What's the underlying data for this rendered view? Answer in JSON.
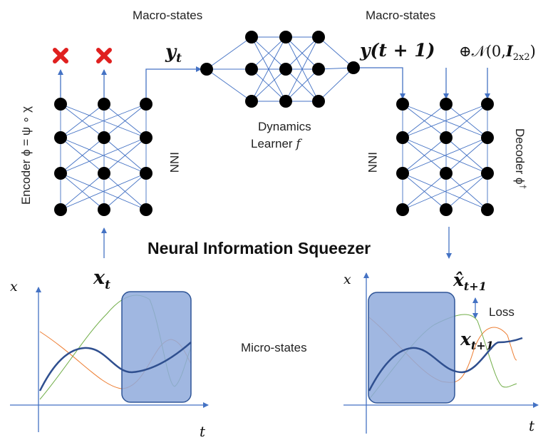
{
  "title": "Neural Information Squeezer",
  "labels": {
    "macro_left": "Macro-states",
    "macro_right": "Macro-states",
    "micro": "Micro-states",
    "dynamics_line1": "Dynamics",
    "dynamics_line2": "Learner",
    "dynamics_f": "f",
    "encoder": "Encoder ϕ = ψ ∘ χ",
    "decoder": "Decoder ϕ",
    "decoder_sup": "†",
    "inn_left": "INN",
    "inn_right": "INN",
    "loss": "Loss"
  },
  "math": {
    "y_t": "y",
    "y_t_sub": "t",
    "y_t1": "y(t + 1)",
    "noise": "⊕𝒩(0,",
    "noise_I": "I",
    "noise_sub": "2x2",
    "noise_close": ")",
    "x_t": "x",
    "x_t_sub": "t",
    "x_hat": "x̂",
    "x_hat_sub": "t+1",
    "x_t1": "x",
    "x_t1_sub": "t+1"
  },
  "axes": {
    "left": {
      "x_label": "t",
      "y_label": "x"
    },
    "right": {
      "x_label": "t",
      "y_label": "x"
    }
  },
  "colors": {
    "line": "#4472c4",
    "node": "#000000",
    "box_fill": "#8faadc",
    "box_stroke": "#2f5597",
    "curve_main": "#2f4f8f",
    "curve_green": "#70ad47",
    "curve_orange": "#ed7d31",
    "cross": "#e0201f"
  }
}
